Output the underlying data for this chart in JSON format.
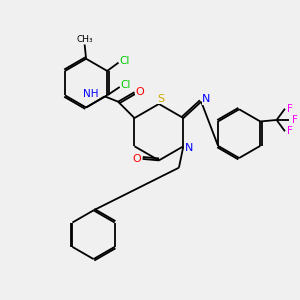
{
  "background_color": "#f0f0f0",
  "atom_colors": {
    "N": "#0000ff",
    "O": "#ff0000",
    "S": "#ccaa00",
    "Cl": "#00cc00",
    "F": "#ff00ff",
    "C": "#000000"
  },
  "bond_color": "#000000",
  "figsize": [
    3.0,
    3.0
  ],
  "dpi": 100
}
